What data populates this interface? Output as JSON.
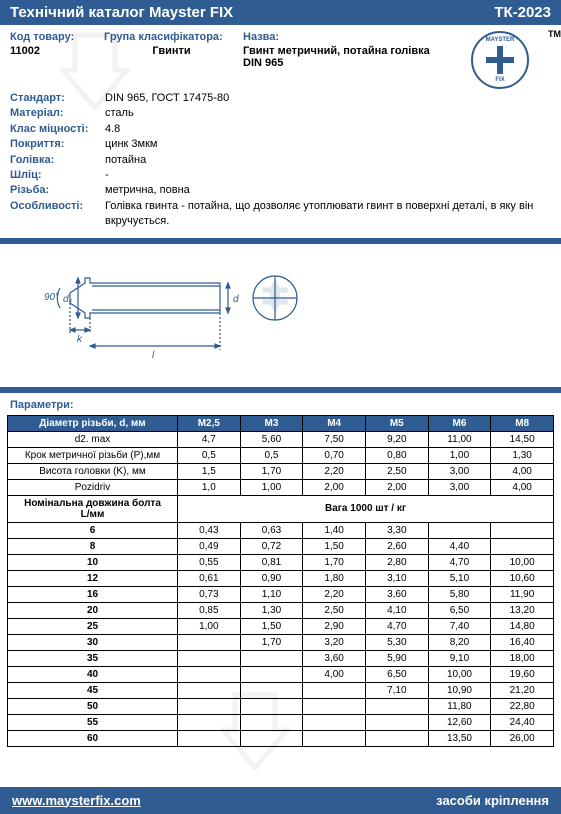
{
  "colors": {
    "brand": "#2f5c92",
    "text": "#000000",
    "bg": "#ffffff"
  },
  "header": {
    "title": "Технічний каталог Mayster FIX",
    "code": "ТК-2023"
  },
  "top": {
    "code_label": "Код товару:",
    "code_value": "11002",
    "group_label": "Група класифікатора:",
    "group_value": "Гвинти",
    "name_label": "Назва:",
    "name_value": "Гвинт метричний, потайна голівка\nDIN 965",
    "logo_top": "MAYSTER",
    "logo_bottom": "FIX",
    "tm": "TM"
  },
  "specs": [
    {
      "label": "Стандарт:",
      "value": "DIN 965, ГОСТ 17475-80"
    },
    {
      "label": "Матеріал:",
      "value": "сталь"
    },
    {
      "label": "Клас міцності:",
      "value": "4.8"
    },
    {
      "label": "Покриття:",
      "value": "цинк 3мкм"
    },
    {
      "label": "Голівка:",
      "value": "потайна"
    },
    {
      "label": "Шліц:",
      "value": "-"
    },
    {
      "label": "Різьба:",
      "value": "метрична, повна"
    },
    {
      "label": "Особливості:",
      "value": "Голівка гвинта - потайна, що дозволяє утоплювати гвинт в поверхні деталі, в яку він вкручується."
    }
  ],
  "params_label": "Параметри:",
  "table": {
    "head_label": "Діаметр різьби, d, мм",
    "columns": [
      "M2,5",
      "M3",
      "M4",
      "M5",
      "M6",
      "M8"
    ],
    "rows_top": [
      {
        "label": "d2. max",
        "cells": [
          "4,7",
          "5,60",
          "7,50",
          "9,20",
          "11,00",
          "14,50"
        ]
      },
      {
        "label": "Крок метричної різьби (P),мм",
        "cells": [
          "0,5",
          "0,5",
          "0,70",
          "0,80",
          "1,00",
          "1,30"
        ]
      },
      {
        "label": "Висота головки (K), мм",
        "cells": [
          "1,5",
          "1,70",
          "2,20",
          "2,50",
          "3,00",
          "4,00"
        ]
      },
      {
        "label": "Pozidriv",
        "cells": [
          "1,0",
          "1,00",
          "2,00",
          "2,00",
          "3,00",
          "4,00"
        ]
      }
    ],
    "weight_header_label": "Номінальна довжина болта\nL/мм",
    "weight_header_span": "Вага 1000 шт / кг",
    "rows_weight": [
      {
        "l": "6",
        "cells": [
          "0,43",
          "0,63",
          "1,40",
          "3,30",
          "",
          ""
        ]
      },
      {
        "l": "8",
        "cells": [
          "0,49",
          "0,72",
          "1,50",
          "2,60",
          "4,40",
          ""
        ]
      },
      {
        "l": "10",
        "cells": [
          "0,55",
          "0,81",
          "1,70",
          "2,80",
          "4,70",
          "10,00"
        ]
      },
      {
        "l": "12",
        "cells": [
          "0,61",
          "0,90",
          "1,80",
          "3,10",
          "5,10",
          "10,60"
        ]
      },
      {
        "l": "16",
        "cells": [
          "0,73",
          "1,10",
          "2,20",
          "3,60",
          "5,80",
          "11,90"
        ]
      },
      {
        "l": "20",
        "cells": [
          "0,85",
          "1,30",
          "2,50",
          "4,10",
          "6,50",
          "13,20"
        ]
      },
      {
        "l": "25",
        "cells": [
          "1,00",
          "1,50",
          "2,90",
          "4,70",
          "7,40",
          "14,80"
        ]
      },
      {
        "l": "30",
        "cells": [
          "",
          "1,70",
          "3,20",
          "5,30",
          "8,20",
          "16,40"
        ]
      },
      {
        "l": "35",
        "cells": [
          "",
          "",
          "3,60",
          "5,90",
          "9,10",
          "18,00"
        ]
      },
      {
        "l": "40",
        "cells": [
          "",
          "",
          "4,00",
          "6,50",
          "10,00",
          "19,60"
        ]
      },
      {
        "l": "45",
        "cells": [
          "",
          "",
          "",
          "7,10",
          "10,90",
          "21,20"
        ]
      },
      {
        "l": "50",
        "cells": [
          "",
          "",
          "",
          "",
          "11,80",
          "22,80"
        ]
      },
      {
        "l": "55",
        "cells": [
          "",
          "",
          "",
          "",
          "12,60",
          "24,40"
        ]
      },
      {
        "l": "60",
        "cells": [
          "",
          "",
          "",
          "",
          "13,50",
          "26,00"
        ]
      }
    ]
  },
  "diagram": {
    "angle": "90°",
    "dk": "dₖ",
    "d": "d",
    "k": "k",
    "l": "l"
  },
  "footer": {
    "url": "www.maysterfix.com",
    "tagline": "засоби кріплення"
  }
}
